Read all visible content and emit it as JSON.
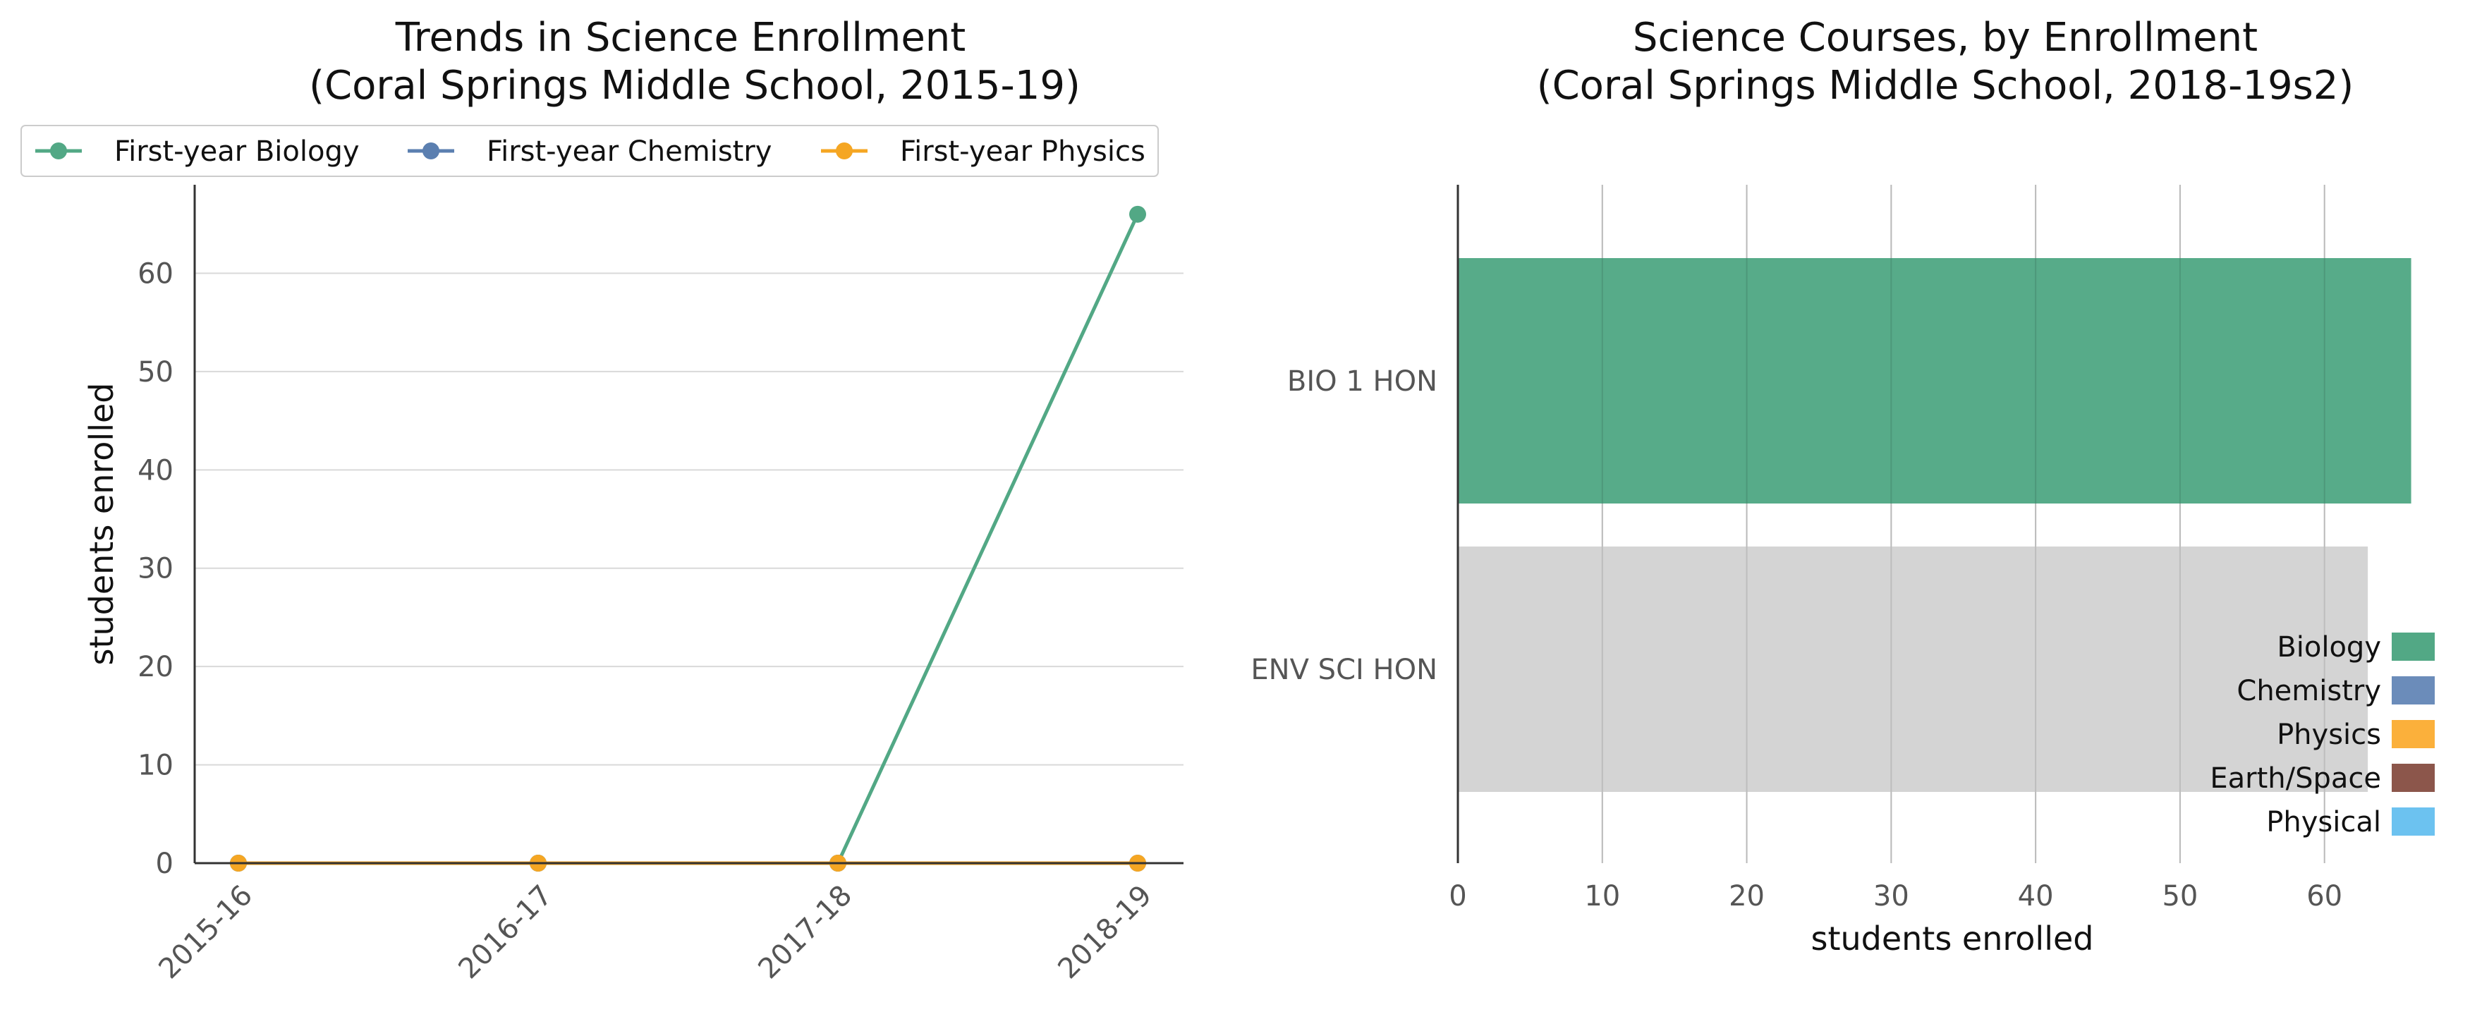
{
  "chart_data": [
    {
      "type": "line",
      "title": "Trends in Science Enrollment",
      "subtitle": "(Coral Springs Middle School, 2015-19)",
      "xlabel": "",
      "ylabel": "students enrolled",
      "categories": [
        "2015-16",
        "2016-17",
        "2017-18",
        "2018-19"
      ],
      "ylim": [
        0,
        69
      ],
      "yticks": [
        0,
        10,
        20,
        30,
        40,
        50,
        60
      ],
      "grid": "horizontal",
      "legend_position": "top",
      "series": [
        {
          "name": "First-year Biology",
          "color": "#52a885",
          "values": [
            0,
            0,
            0,
            66
          ]
        },
        {
          "name": "First-year Chemistry",
          "color": "#5b7fb0",
          "values": [
            0,
            0,
            0,
            0
          ]
        },
        {
          "name": "First-year Physics",
          "color": "#f5a623",
          "values": [
            0,
            0,
            0,
            0
          ]
        }
      ]
    },
    {
      "type": "bar",
      "orientation": "horizontal",
      "title": "Science Courses, by Enrollment",
      "subtitle": "(Coral Springs Middle School, 2018-19s2)",
      "xlabel": "students enrolled",
      "ylabel": "",
      "xlim": [
        0,
        69
      ],
      "xticks": [
        0,
        10,
        20,
        30,
        40,
        50,
        60
      ],
      "grid": "vertical",
      "legend_position": "bottom-right",
      "bars": [
        {
          "label": "BIO 1 HON",
          "value": 66,
          "color": "#52a885"
        },
        {
          "label": "ENV SCI HON",
          "value": 63,
          "color": "#d3d3d3"
        }
      ],
      "legend": [
        {
          "name": "Biology",
          "color": "#52a885"
        },
        {
          "name": "Chemistry",
          "color": "#6b8cba"
        },
        {
          "name": "Physics",
          "color": "#fbb03b"
        },
        {
          "name": "Earth/Space",
          "color": "#8c564b"
        },
        {
          "name": "Physical",
          "color": "#6cc2f0"
        }
      ]
    }
  ]
}
